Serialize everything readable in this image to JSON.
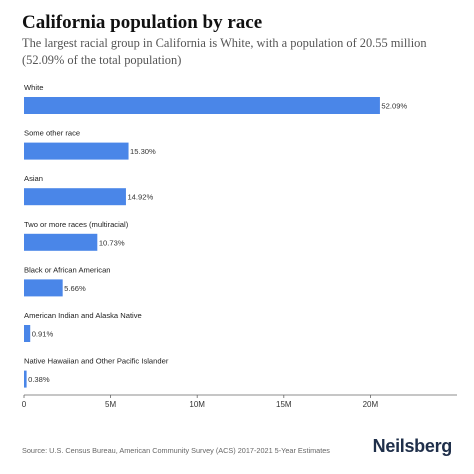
{
  "title": "California population by race",
  "subtitle": "The largest racial group in California is White, with a population of 20.55 million (52.09% of the total population)",
  "source": "Source: U.S. Census Bureau, American Community Survey (ACS) 2017-2021 5-Year Estimates",
  "brand": "Neilsberg",
  "colors": {
    "bar": "#4a86e8",
    "axis": "#666666",
    "gridline": "#e6e6e6"
  },
  "chart_data": {
    "type": "bar",
    "orientation": "horizontal",
    "title": "California population by race",
    "categories": [
      "White",
      "Some other race",
      "Asian",
      "Two or more races (multiracial)",
      "Black or African American",
      "American Indian and Alaska Native",
      "Native Hawaiian and Other Pacific Islander"
    ],
    "values": [
      20550000,
      6036000,
      5886000,
      4233000,
      2233000,
      359000,
      150000
    ],
    "value_labels": [
      "52.09%",
      "15.30%",
      "14.92%",
      "10.73%",
      "5.66%",
      "0.91%",
      "0.38%"
    ],
    "xlim": [
      0,
      25000000
    ],
    "xticks": [
      0,
      5000000,
      10000000,
      15000000,
      20000000
    ],
    "xtick_labels": [
      "0",
      "5M",
      "10M",
      "15M",
      "20M"
    ],
    "grid": false,
    "legend": "none"
  }
}
